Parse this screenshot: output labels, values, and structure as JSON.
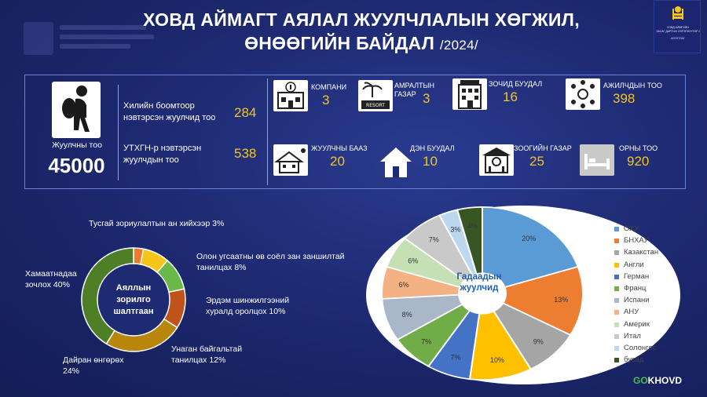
{
  "title": {
    "line1": "ХОВД АЙМАГТ АЯЛАЛ ЖУУЛЧЛАЛЫН ХӨГЖИЛ,",
    "line2": "ӨНӨӨГИЙН БАЙДАЛ",
    "year": "/2024/"
  },
  "emblem": {
    "text1": "ХОВД АЙМГИЙН",
    "text2": "ЗАСАГ ДАРГЫН ХЭРЭГЖҮҮЛЭГЧ",
    "text3": "АГЕНТЛАГ"
  },
  "tourists": {
    "label": "Жуулчны тоо",
    "value": "45000",
    "border_label": "Хилийн боомтоор нэвтэрсэн жуулчид тоо",
    "border_value": "284",
    "utkhgn_label": "УТХГН-р нэвтэрсэн жуулчдын тоо",
    "utkhgn_value": "538"
  },
  "stats": [
    {
      "label": "КОМПАНИ",
      "value": "3",
      "icon": "company-icon"
    },
    {
      "label": "АМРАЛТЫН ГАЗАР",
      "value": "3",
      "icon": "resort-icon"
    },
    {
      "label": "ЗОЧИД БУУДАЛ",
      "value": "16",
      "icon": "hotel-icon"
    },
    {
      "label": "АЖИЛЧДЫН ТОО",
      "value": "398",
      "icon": "workers-icon"
    },
    {
      "label": "ЖУУЛЧНЫ БААЗ",
      "value": "20",
      "icon": "tourist-camp-icon"
    },
    {
      "label": "ДЭН БУУДАЛ",
      "value": "10",
      "icon": "guest-house-icon"
    },
    {
      "label": "ЗООГИЙН ГАЗАР",
      "value": "25",
      "icon": "restaurant-icon"
    },
    {
      "label": "ОРНЫ ТОО",
      "value": "920",
      "icon": "bed-icon"
    }
  ],
  "chart_data": [
    {
      "type": "pie",
      "title": "Аяллын зорилго шалтгаан",
      "categories": [
        "Тусгай зориулалтын ан хийхээр",
        "Олон угсаатны өв соёл зан заншилтай танилцах",
        "Эрдэм шинжилгээний хуралд оролцох",
        "Унаган байгальтай танилцах",
        "Дайран өнгөрөх",
        "Хамаатнадаа зочлох"
      ],
      "values": [
        3,
        8,
        10,
        12,
        24,
        40
      ],
      "labels": [
        "Тусгай зориулалтын ан хийхээр 3%",
        "Олон угсаатны өв соёл зан заншилтай танилцах 8%",
        "Эрдэм шинжилгээний хуралд оролцох 10%",
        "Унаган байгальтай танилцах  12%",
        "Дайран өнгөрөх 24%",
        "Хамаатнадаа зочлох 40%"
      ],
      "colors": [
        "#ee7a2e",
        "#f5c518",
        "#6bb84a",
        "#c0521b",
        "#b8860b",
        "#4e7e25"
      ]
    },
    {
      "type": "pie",
      "title": "Гадаадын жуулчид",
      "categories": [
        "ОХУ",
        "БНХАУ",
        "Казакстан",
        "Англи",
        "Герман",
        "Франц",
        "Испани",
        "АНУ",
        "Америк",
        "Итал",
        "Солонгос",
        "бусад"
      ],
      "values": [
        20,
        13,
        9,
        10,
        7,
        7,
        8,
        6,
        6,
        7,
        3,
        4
      ],
      "colors": [
        "#5b9bd5",
        "#ed7d31",
        "#a5a5a5",
        "#ffc000",
        "#4472c4",
        "#70ad47",
        "#a9b7c9",
        "#f4b183",
        "#c5e0b4",
        "#c9c9c9",
        "#bdd7ee",
        "#375623"
      ]
    }
  ],
  "brand": {
    "part1": "GO",
    "part2": "KHOVD"
  }
}
